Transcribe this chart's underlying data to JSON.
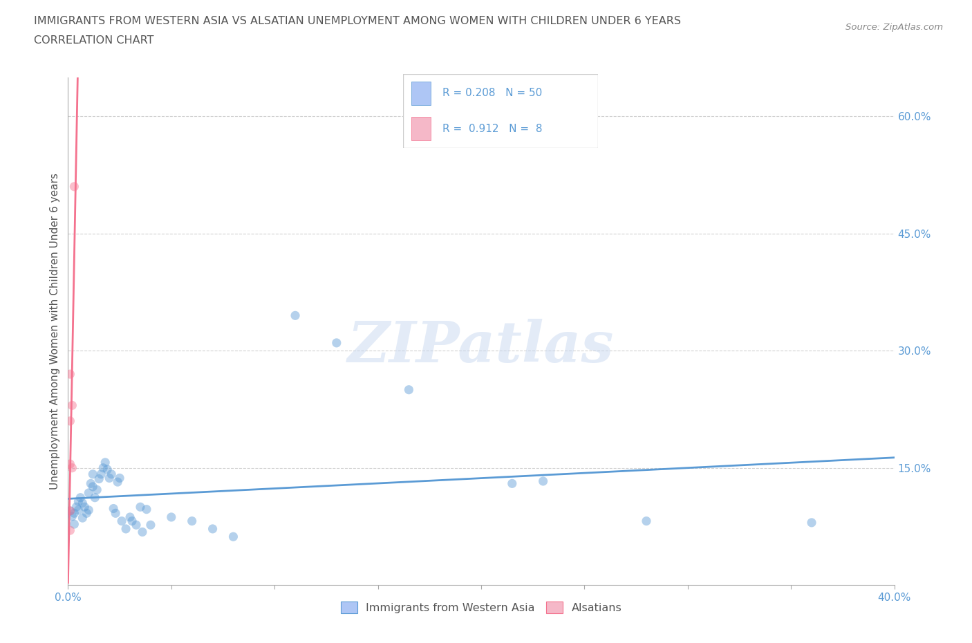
{
  "title_line1": "IMMIGRANTS FROM WESTERN ASIA VS ALSATIAN UNEMPLOYMENT AMONG WOMEN WITH CHILDREN UNDER 6 YEARS",
  "title_line2": "CORRELATION CHART",
  "source_text": "Source: ZipAtlas.com",
  "ylabel": "Unemployment Among Women with Children Under 6 years",
  "xlim": [
    0.0,
    0.4
  ],
  "ylim": [
    0.0,
    0.65
  ],
  "yticks": [
    0.15,
    0.3,
    0.45,
    0.6
  ],
  "ytick_labels": [
    "15.0%",
    "30.0%",
    "45.0%",
    "60.0%"
  ],
  "xtick_left_label": "0.0%",
  "xtick_right_label": "40.0%",
  "watermark": "ZIPatlas",
  "legend_box_color_blue": "#aec6f5",
  "legend_box_color_pink": "#f5b8c8",
  "blue_color": "#5b9bd5",
  "pink_color": "#f4728e",
  "R_blue": 0.208,
  "N_blue": 50,
  "R_pink": 0.912,
  "N_pink": 8,
  "legend_text_color": "#5b9bd5",
  "grid_color": "#cccccc",
  "title_color": "#555555",
  "axis_color": "#aaaaaa",
  "blue_scatter": [
    [
      0.001,
      0.095
    ],
    [
      0.002,
      0.088
    ],
    [
      0.003,
      0.092
    ],
    [
      0.003,
      0.078
    ],
    [
      0.004,
      0.1
    ],
    [
      0.005,
      0.096
    ],
    [
      0.005,
      0.107
    ],
    [
      0.006,
      0.112
    ],
    [
      0.007,
      0.086
    ],
    [
      0.007,
      0.105
    ],
    [
      0.008,
      0.1
    ],
    [
      0.009,
      0.092
    ],
    [
      0.01,
      0.096
    ],
    [
      0.01,
      0.118
    ],
    [
      0.011,
      0.13
    ],
    [
      0.012,
      0.126
    ],
    [
      0.012,
      0.142
    ],
    [
      0.013,
      0.112
    ],
    [
      0.014,
      0.122
    ],
    [
      0.015,
      0.136
    ],
    [
      0.016,
      0.142
    ],
    [
      0.017,
      0.15
    ],
    [
      0.018,
      0.157
    ],
    [
      0.019,
      0.148
    ],
    [
      0.02,
      0.137
    ],
    [
      0.021,
      0.142
    ],
    [
      0.022,
      0.098
    ],
    [
      0.023,
      0.092
    ],
    [
      0.024,
      0.132
    ],
    [
      0.025,
      0.137
    ],
    [
      0.026,
      0.082
    ],
    [
      0.028,
      0.072
    ],
    [
      0.03,
      0.087
    ],
    [
      0.031,
      0.082
    ],
    [
      0.033,
      0.077
    ],
    [
      0.035,
      0.1
    ],
    [
      0.036,
      0.068
    ],
    [
      0.038,
      0.097
    ],
    [
      0.04,
      0.077
    ],
    [
      0.05,
      0.087
    ],
    [
      0.06,
      0.082
    ],
    [
      0.07,
      0.072
    ],
    [
      0.08,
      0.062
    ],
    [
      0.11,
      0.345
    ],
    [
      0.13,
      0.31
    ],
    [
      0.165,
      0.25
    ],
    [
      0.215,
      0.13
    ],
    [
      0.23,
      0.133
    ],
    [
      0.28,
      0.082
    ],
    [
      0.36,
      0.08
    ]
  ],
  "pink_scatter": [
    [
      0.001,
      0.07
    ],
    [
      0.001,
      0.095
    ],
    [
      0.001,
      0.155
    ],
    [
      0.001,
      0.21
    ],
    [
      0.001,
      0.27
    ],
    [
      0.002,
      0.15
    ],
    [
      0.002,
      0.23
    ],
    [
      0.003,
      0.51
    ]
  ],
  "blue_trend_x": [
    0.0,
    0.4
  ],
  "blue_trend_y_start": 0.098,
  "blue_trend_y_end": 0.148,
  "pink_trend_x_start": -0.002,
  "pink_trend_x_end": 0.006
}
